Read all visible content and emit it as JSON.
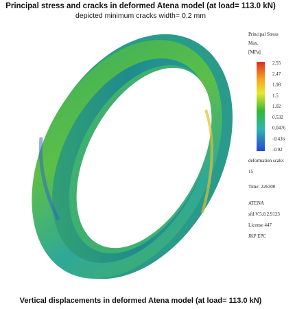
{
  "header": {
    "title": "Principal stress and cracks in deformed Atena model (at load= 113.0 kN)",
    "subtitle": "depicted minimum cracks width= 0.2 mm"
  },
  "legend": {
    "heading": [
      "Principal Stress",
      "Max.",
      "[MPa]"
    ],
    "scale_labels": [
      "2.55",
      "2.47",
      "1.98",
      "1.5",
      "1.02",
      "0.532",
      "0.0476",
      "-0.436",
      "-0.92"
    ],
    "info": [
      "deformation scale:",
      "15",
      "Time: 226300",
      "ATENA",
      "sfd V.5.0.2.9123",
      "License 447",
      "JKP EPC"
    ]
  },
  "footer": {
    "caption": "Vertical displacements in deformed Atena model (at load= 113.0 kN)"
  }
}
